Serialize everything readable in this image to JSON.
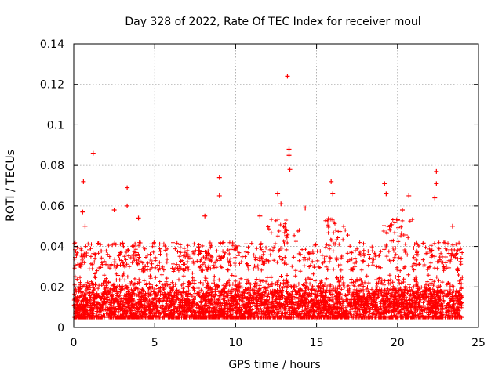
{
  "chart_data": {
    "type": "scatter",
    "title": "Day 328 of 2022, Rate Of TEC Index for receiver moul",
    "xlabel": "GPS time / hours",
    "ylabel": "ROTI / TECUs",
    "xlim": [
      0,
      25
    ],
    "ylim": [
      0,
      0.14
    ],
    "xticks": [
      0,
      5,
      10,
      15,
      20,
      25
    ],
    "xtick_labels": [
      "0",
      "5",
      "10",
      "15",
      "20",
      "25"
    ],
    "yticks": [
      0,
      0.02,
      0.04,
      0.06,
      0.08,
      0.1,
      0.12,
      0.14
    ],
    "ytick_labels": [
      "0",
      "0.02",
      "0.04",
      "0.06",
      "0.08",
      "0.1",
      "0.12",
      "0.14"
    ],
    "grid": true,
    "marker": "+",
    "series": [
      {
        "name": "ROTI",
        "color": "#ff0000",
        "data_range_hours": [
          0,
          24
        ],
        "typical_band": [
          0.005,
          0.03
        ],
        "outliers": [
          {
            "x": 0.6,
            "y": 0.072
          },
          {
            "x": 0.55,
            "y": 0.057
          },
          {
            "x": 0.7,
            "y": 0.05
          },
          {
            "x": 1.2,
            "y": 0.086
          },
          {
            "x": 2.5,
            "y": 0.058
          },
          {
            "x": 3.3,
            "y": 0.069
          },
          {
            "x": 3.3,
            "y": 0.06
          },
          {
            "x": 4.0,
            "y": 0.054
          },
          {
            "x": 8.1,
            "y": 0.055
          },
          {
            "x": 9.0,
            "y": 0.074
          },
          {
            "x": 9.0,
            "y": 0.065
          },
          {
            "x": 11.5,
            "y": 0.055
          },
          {
            "x": 12.6,
            "y": 0.066
          },
          {
            "x": 12.8,
            "y": 0.061
          },
          {
            "x": 13.2,
            "y": 0.124
          },
          {
            "x": 13.3,
            "y": 0.088
          },
          {
            "x": 13.3,
            "y": 0.085
          },
          {
            "x": 13.35,
            "y": 0.078
          },
          {
            "x": 14.3,
            "y": 0.059
          },
          {
            "x": 15.9,
            "y": 0.072
          },
          {
            "x": 16.0,
            "y": 0.066
          },
          {
            "x": 19.2,
            "y": 0.071
          },
          {
            "x": 19.3,
            "y": 0.066
          },
          {
            "x": 20.3,
            "y": 0.058
          },
          {
            "x": 20.7,
            "y": 0.065
          },
          {
            "x": 22.4,
            "y": 0.077
          },
          {
            "x": 22.4,
            "y": 0.071
          },
          {
            "x": 22.3,
            "y": 0.064
          },
          {
            "x": 23.4,
            "y": 0.05
          }
        ]
      }
    ]
  }
}
